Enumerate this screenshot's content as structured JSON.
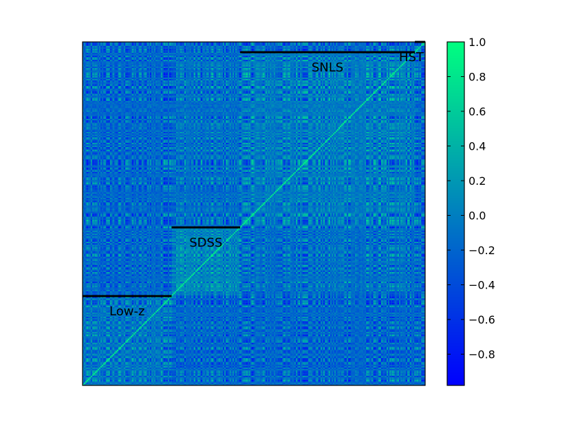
{
  "chart_data": {
    "type": "heatmap",
    "title": "",
    "xlabel": "",
    "ylabel": "",
    "colormap": "winter",
    "colormap_stops": [
      "#0000ff",
      "#00ff80"
    ],
    "value_range": [
      -0.98,
      1.0
    ],
    "grid": false,
    "colorbar": {
      "placement": "right",
      "ticks": [
        1.0,
        0.8,
        0.6,
        0.4,
        0.2,
        0.0,
        -0.2,
        -0.4,
        -0.6,
        -0.8
      ],
      "tick_labels": [
        "1.0",
        "0.8",
        "0.6",
        "0.4",
        "0.2",
        "0.0",
        "−0.2",
        "−0.4",
        "−0.6",
        "−0.8"
      ]
    },
    "groups": [
      {
        "name": "Low-z",
        "range": [
          0.0,
          0.26
        ]
      },
      {
        "name": "SDSS",
        "range": [
          0.26,
          0.46
        ]
      },
      {
        "name": "SNLS",
        "range": [
          0.46,
          0.97
        ]
      },
      {
        "name": "HST",
        "range": [
          0.97,
          1.0
        ]
      }
    ]
  }
}
